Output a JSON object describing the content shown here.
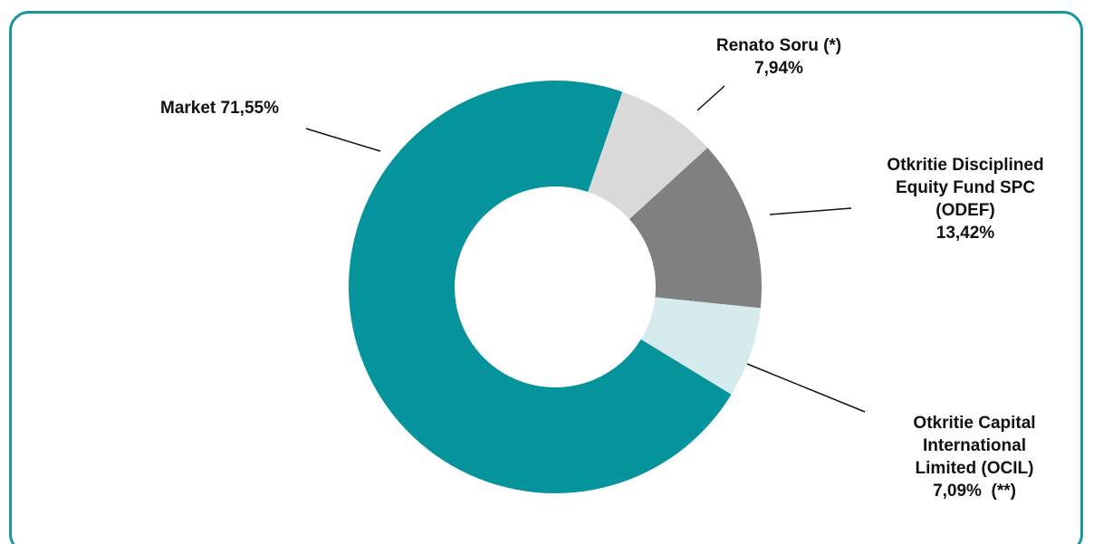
{
  "chart_data": {
    "type": "pie",
    "categories": [
      "Renato Soru (*)",
      "Otkritie Disciplined Equity Fund SPC (ODEF)",
      "Otkritie Capital International Limited (OCIL)",
      "Market"
    ],
    "values": [
      7.94,
      13.42,
      7.09,
      71.55
    ],
    "value_labels": [
      "7,94%",
      "13,42%",
      "7,09%  (**)",
      "71,55%"
    ],
    "colors": [
      "#d9d9d9",
      "#808080",
      "#d5ebee",
      "#05939c"
    ],
    "donut": true
  }
}
